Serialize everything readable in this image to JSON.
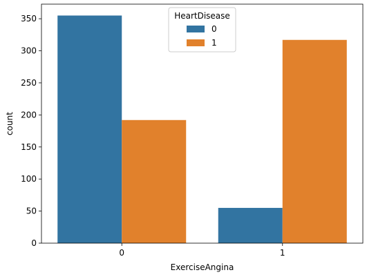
{
  "chart_data": {
    "type": "bar",
    "categories": [
      "0",
      "1"
    ],
    "series": [
      {
        "name": "0",
        "values": [
          355,
          55
        ],
        "color": "#3274a1"
      },
      {
        "name": "1",
        "values": [
          192,
          317
        ],
        "color": "#e1812c"
      }
    ],
    "xlabel": "ExerciseAngina",
    "ylabel": "count",
    "ylim": [
      0,
      372.75
    ],
    "yticks": [
      "0",
      "50",
      "100",
      "150",
      "200",
      "250",
      "300",
      "350"
    ],
    "legend": {
      "title": "HeartDisease",
      "placement": "top-center"
    },
    "grid": false
  }
}
